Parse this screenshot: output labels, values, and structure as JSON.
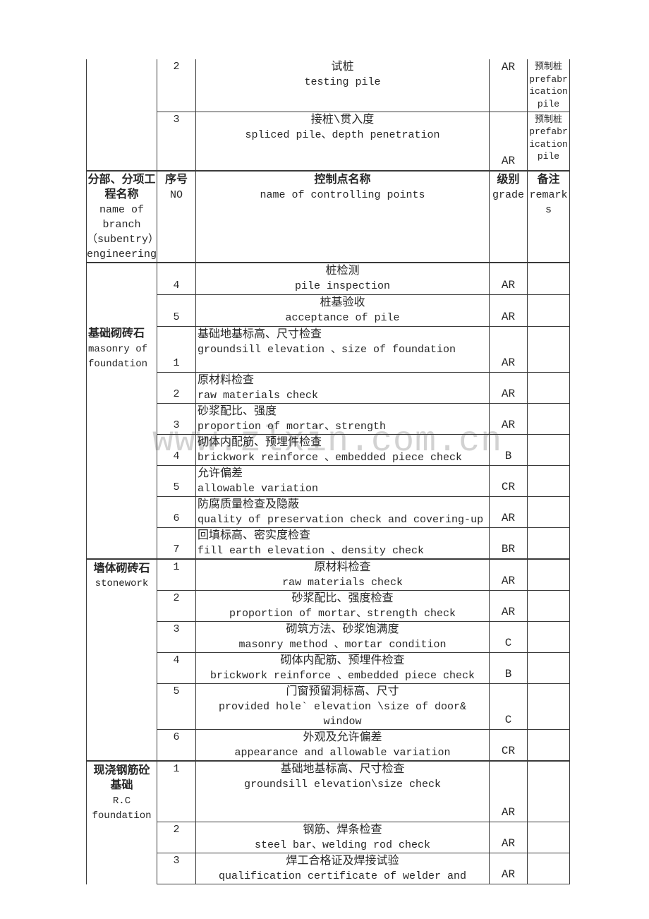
{
  "watermark": {
    "text": "www.zlxin.com.cn",
    "color": "#c7c7c7"
  },
  "header": {
    "branch_cn": "分部、分项工\n程名称",
    "branch_en": "name of\nbranch\n（subentry）\nengineering",
    "no_cn": "序号",
    "no_en": "NO",
    "point_cn": "控制点名称",
    "point_en": "name of controlling points",
    "grade_cn": "级别",
    "grade_en": "grade",
    "remarks_cn": "备注",
    "remarks_en": "remark\ns"
  },
  "top_rows": [
    {
      "no": "2",
      "cn": "试桩",
      "en": "testing pile",
      "grade": "AR",
      "grade_pos": "top",
      "no_pos": "top",
      "align": "center",
      "h": 74,
      "remark": "预制桩\nprefabr\nication\npile"
    },
    {
      "no": "3",
      "cn": "接桩\\贯入度",
      "en": "spliced pile、depth penetration",
      "grade": "AR",
      "grade_pos": "bottom",
      "no_pos": "top",
      "align": "center",
      "h": 84,
      "remark": "预制桩\nprefabr\nication\npile"
    }
  ],
  "sections": [
    {
      "label_cn": "基础砌砖石",
      "label_en": "masonry  of\nfoundation",
      "label_offset": true,
      "rows": [
        {
          "no": "4",
          "cn": "桩检测",
          "en": "pile inspection",
          "grade": "AR",
          "align": "center",
          "no_pos": "bottom",
          "h": 45
        },
        {
          "no": "5",
          "cn": "桩基验收",
          "en": "acceptance of pile",
          "grade": "AR",
          "align": "center",
          "no_pos": "bottom",
          "h": 45
        },
        {
          "no": "1",
          "cn": "基础地基标高、尺寸检查",
          "en": "groundsill elevation 、size of foundation",
          "grade": "AR",
          "align": "left",
          "no_pos": "bottom",
          "h": 65
        },
        {
          "no": "2",
          "cn": "原材料检查",
          "en": "raw materials check",
          "grade": "AR",
          "align": "left",
          "no_pos": "bottom",
          "h": 43
        },
        {
          "no": "3",
          "cn": "砂浆配比、强度",
          "en": "proportion of mortar、strength",
          "grade": "AR",
          "align": "left",
          "no_pos": "bottom",
          "h": 44
        },
        {
          "no": "4",
          "cn": "砌体内配筋、预埋件检查",
          "en": "brickwork reinforce 、embedded piece check",
          "grade": "B",
          "align": "left",
          "no_pos": "bottom",
          "h": 43
        },
        {
          "no": "5",
          "cn": "允许偏差",
          "en": "allowable variation",
          "grade": "CR",
          "align": "left",
          "no_pos": "bottom",
          "h": 44
        },
        {
          "no": "6",
          "cn": "防腐质量检查及隐蔽",
          "en": "quality of preservation check and covering-up",
          "grade": "AR",
          "align": "left",
          "no_pos": "bottom",
          "h": 44
        },
        {
          "no": "7",
          "cn": "回填标高、密实度检查",
          "en": "fill earth elevation 、density check",
          "grade": "BR",
          "align": "left",
          "no_pos": "bottom",
          "h": 43
        }
      ]
    },
    {
      "label_cn": "墙体砌砖石",
      "label_en": "stonework",
      "rows": [
        {
          "no": "1",
          "cn": "原材料检查",
          "en": "raw materials check",
          "grade": "AR",
          "align": "center",
          "no_pos": "top",
          "h": 43
        },
        {
          "no": "2",
          "cn": "砂浆配比、强度检查",
          "en": "proportion of mortar、strength check",
          "grade": "AR",
          "align": "center",
          "no_pos": "top",
          "h": 43
        },
        {
          "no": "3",
          "cn": "砌筑方法、砂浆饱满度",
          "en": "masonry method 、mortar condition",
          "grade": "C",
          "align": "center",
          "no_pos": "top",
          "h": 44
        },
        {
          "no": "4",
          "cn": "砌体内配筋、预埋件检查",
          "en": "brickwork reinforce 、embedded piece check",
          "grade": "B",
          "align": "center",
          "no_pos": "top",
          "h": 43
        },
        {
          "no": "5",
          "cn": "门窗预留洞标高、尺寸",
          "en": "provided hole` elevation \\size of door& window",
          "grade": "C",
          "align": "center",
          "no_pos": "top",
          "h": 43
        },
        {
          "no": "6",
          "cn": "外观及允许偏差",
          "en": "appearance and allowable variation",
          "grade": "CR",
          "align": "center",
          "no_pos": "top",
          "h": 43
        }
      ]
    },
    {
      "label_cn": "现浇钢筋砼\n基础",
      "label_en": "R.C\nfoundation",
      "label_no_bottom": true,
      "rows": [
        {
          "no": "1",
          "cn": "基础地基标高、尺寸检查",
          "en": "groundsill elevation\\size check",
          "grade": "AR",
          "align": "center",
          "no_pos": "top",
          "h": 87
        },
        {
          "no": "2",
          "cn": "钢筋、焊条检查",
          "en": "steel bar、welding rod check",
          "grade": "AR",
          "align": "center",
          "no_pos": "top",
          "h": 43
        },
        {
          "no": "3",
          "cn": "焊工合格证及焊接试验",
          "en": "qualification certificate of welder and",
          "grade": "AR",
          "align": "center",
          "no_pos": "top",
          "h": 41
        }
      ]
    }
  ]
}
